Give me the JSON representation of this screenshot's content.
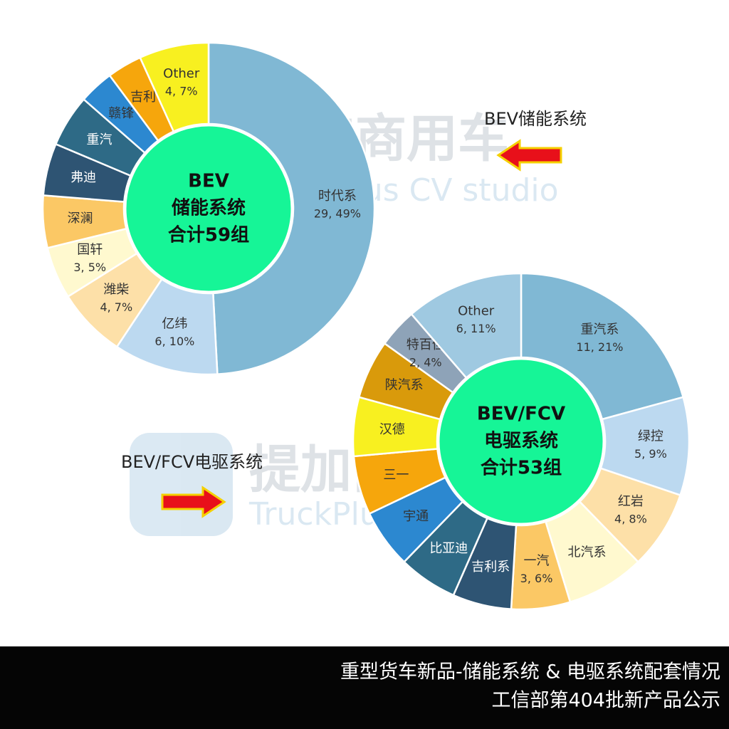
{
  "watermark": {
    "brand": "提加商用车",
    "studio": "TruckPlus CV studio"
  },
  "footer": {
    "line1": "重型货车新品-储能系统 & 电驱系统配套情况",
    "line2": "工信部第404批新产品公示"
  },
  "chart_data": [
    {
      "type": "pie",
      "center_text": [
        "BEV",
        "储能系统",
        "合计59组"
      ],
      "annotation": "BEV储能系统",
      "categories": [
        "时代系",
        "亿纬",
        "潍柴",
        "国轩",
        "深澜",
        "弗迪",
        "重汽",
        "赣锋",
        "吉利",
        "Other"
      ],
      "values": [
        29,
        6,
        4,
        3,
        3,
        3,
        3,
        2,
        2,
        4
      ],
      "value_labels": [
        "29, 49%",
        "6, 10%",
        "4, 7%",
        "3, 5%",
        null,
        null,
        null,
        null,
        null,
        "4, 7%"
      ],
      "colors": [
        "#80b8d4",
        "#bcd9f0",
        "#fde0a8",
        "#fff9cf",
        "#fbc865",
        "#2e5473",
        "#2e6a86",
        "#2c88d0",
        "#f6a60c",
        "#f8f020"
      ]
    },
    {
      "type": "pie",
      "center_text": [
        "BEV/FCV",
        "电驱系统",
        "合计53组"
      ],
      "annotation": "BEV/FCV电驱系统",
      "categories": [
        "重汽系",
        "绿控",
        "红岩",
        "北汽系",
        "一汽",
        "吉利系",
        "比亚迪",
        "宇通",
        "三一",
        "汉德",
        "陕汽系",
        "特百佳",
        "Other"
      ],
      "values": [
        11,
        5,
        4,
        4,
        3,
        3,
        3,
        3,
        3,
        3,
        3,
        2,
        6
      ],
      "value_labels": [
        "11, 21%",
        "5, 9%",
        "4, 8%",
        null,
        "3, 6%",
        null,
        null,
        null,
        null,
        null,
        null,
        "2, 4%",
        "6, 11%"
      ],
      "colors": [
        "#80b8d4",
        "#bcd9f0",
        "#fde0a8",
        "#fff9cf",
        "#fbc865",
        "#2e5473",
        "#2e6a86",
        "#2c88d0",
        "#f6a60c",
        "#f8f020",
        "#d99a0b",
        "#8ea3b8",
        "#9fc9e1"
      ]
    }
  ]
}
